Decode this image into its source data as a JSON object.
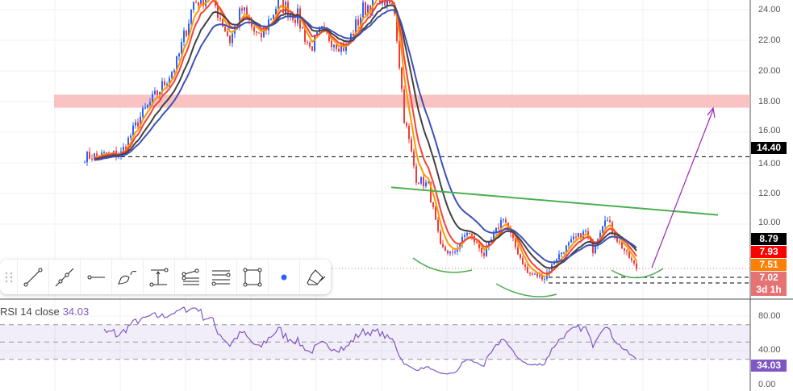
{
  "price_axis": {
    "ticks": [
      "24.00",
      "22.00",
      "20.00",
      "18.00",
      "16.00",
      "14.00",
      "12.00",
      "10.00"
    ],
    "tick_values": [
      24,
      22,
      20,
      18,
      16,
      14,
      12,
      10
    ]
  },
  "price_labels": [
    {
      "text": "14.40",
      "color": "#000000",
      "value": 14.4
    },
    {
      "text": "8.79",
      "color": "#000000",
      "value": 8.79
    },
    {
      "text": "7.93",
      "color": "#ff0000",
      "value": 7.93
    },
    {
      "text": "7.51",
      "color": "#ff7f00",
      "value": 7.51
    },
    {
      "text": "7.02",
      "sub": "3d 1h",
      "color": "#e57373",
      "value": 7.02
    }
  ],
  "rsi": {
    "title": "RSI 14 close",
    "value": "34.03",
    "color": "#7e57c2",
    "ticks": [
      "80.00",
      "40.00",
      "0.00"
    ],
    "band": [
      30,
      70
    ]
  },
  "price_path": [
    [
      0,
      14.4
    ],
    [
      8,
      14.5
    ],
    [
      15,
      14.6
    ],
    [
      23,
      17
    ],
    [
      32,
      19
    ],
    [
      38,
      20.5
    ],
    [
      45,
      24.5
    ],
    [
      52,
      25
    ],
    [
      60,
      22
    ],
    [
      65,
      24
    ],
    [
      72,
      22
    ],
    [
      80,
      24.5
    ],
    [
      88,
      23.5
    ],
    [
      93,
      21.5
    ],
    [
      98,
      22.5
    ],
    [
      108,
      21.5
    ],
    [
      115,
      24
    ],
    [
      122,
      25
    ],
    [
      128,
      24
    ],
    [
      132,
      17
    ],
    [
      137,
      13
    ],
    [
      142,
      12.5
    ],
    [
      147,
      8.5
    ],
    [
      152,
      8
    ],
    [
      158,
      9.5
    ],
    [
      162,
      8.7
    ],
    [
      165,
      8
    ],
    [
      173,
      10.5
    ],
    [
      178,
      8.5
    ],
    [
      183,
      6.8
    ],
    [
      190,
      6.5
    ],
    [
      195,
      7.8
    ],
    [
      202,
      9
    ],
    [
      207,
      9.5
    ],
    [
      210,
      8.3
    ],
    [
      215,
      10.5
    ],
    [
      220,
      9
    ],
    [
      228,
      7.1
    ]
  ],
  "moving_average_colors": [
    "#ff9800",
    "#f44336",
    "#424242",
    "#3f51b5"
  ],
  "drawings": {
    "resistance_zone": [
      17.6,
      18.45
    ],
    "support_line": 14.4,
    "trendline": [
      12.4,
      10.6
    ],
    "arrow_color": "#9c27b0",
    "arc_color": "#4caf50"
  },
  "toolbar": [
    "drag-handle",
    "trend-line",
    "extended-line",
    "horizontal-ray",
    "brush",
    "price-range",
    "fib-retracement",
    "parallel-channel",
    "rectangle",
    "dot",
    "eraser"
  ]
}
